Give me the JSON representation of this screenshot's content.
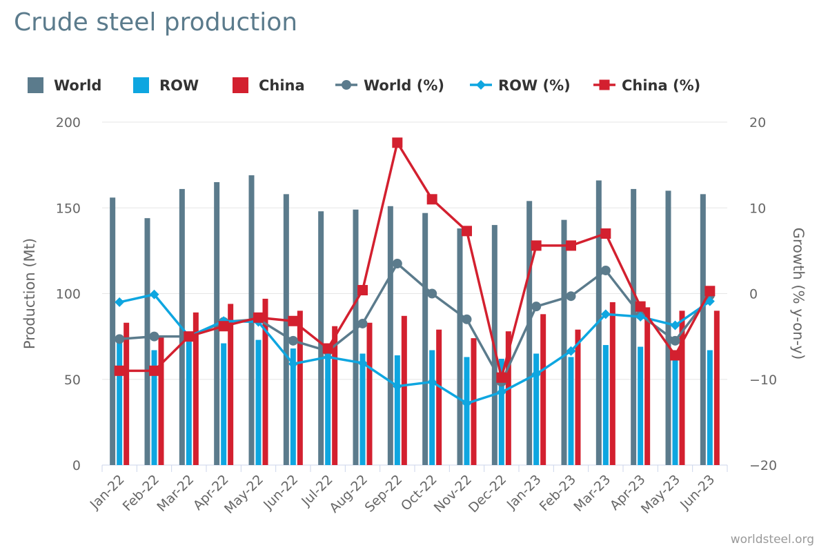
{
  "title": "Crude steel production",
  "credit": "worldsteel.org",
  "chart_data": {
    "type": "bar",
    "title": "Crude steel production",
    "categories": [
      "Jan-22",
      "Feb-22",
      "Mar-22",
      "Apr-22",
      "May-22",
      "Jun-22",
      "Jul-22",
      "Aug-22",
      "Sep-22",
      "Oct-22",
      "Nov-22",
      "Dec-22",
      "Jan-23",
      "Feb-23",
      "Mar-23",
      "Apr-23",
      "May-23",
      "Jun-23"
    ],
    "ylabel": "Production (Mt)",
    "ylabel_right": "Growth (% y-on-y)",
    "ylim": [
      0,
      200
    ],
    "ylim_right": [
      -20,
      20
    ],
    "yticks": [
      "0",
      "50",
      "100",
      "150",
      "200"
    ],
    "yticks_right": [
      "−20",
      "−10",
      "0",
      "10",
      "20"
    ],
    "legend_position": "top-left",
    "series": [
      {
        "name": "World",
        "type": "bar",
        "axis": "left",
        "color": "#5b7b8c",
        "values": [
          156,
          144,
          161,
          165,
          169,
          158,
          148,
          149,
          151,
          147,
          138,
          140,
          154,
          143,
          166,
          161,
          160,
          158
        ]
      },
      {
        "name": "ROW",
        "type": "bar",
        "axis": "left",
        "color": "#0ea6e0",
        "values": [
          72,
          67,
          72,
          71,
          73,
          68,
          68,
          65,
          64,
          67,
          63,
          62,
          65,
          63,
          70,
          69,
          67,
          67
        ]
      },
      {
        "name": "China",
        "type": "bar",
        "axis": "left",
        "color": "#d3202f",
        "values": [
          83,
          75,
          89,
          94,
          97,
          90,
          81,
          83,
          87,
          79,
          74,
          78,
          88,
          79,
          95,
          92,
          90,
          90
        ]
      },
      {
        "name": "World (%)",
        "type": "line",
        "axis": "right",
        "color": "#5b7b8c",
        "marker": "circle",
        "values": [
          -5.3,
          -5.0,
          -5.0,
          -3.3,
          -3.0,
          -5.5,
          -6.7,
          -3.5,
          3.5,
          0,
          -3.0,
          -10.3,
          -1.5,
          -0.3,
          2.7,
          -2.5,
          -5.5,
          -0.2
        ]
      },
      {
        "name": "ROW (%)",
        "type": "line",
        "axis": "right",
        "color": "#0ea6e0",
        "marker": "diamond",
        "values": [
          -1.0,
          -0.1,
          -5.0,
          -3.2,
          -3.3,
          -8.2,
          -7.4,
          -8.1,
          -10.8,
          -10.3,
          -12.8,
          -11.5,
          -9.4,
          -6.7,
          -2.4,
          -2.7,
          -3.7,
          -0.9
        ]
      },
      {
        "name": "China (%)",
        "type": "line",
        "axis": "right",
        "color": "#d3202f",
        "marker": "square",
        "values": [
          -9.0,
          -9.0,
          -5.0,
          -3.8,
          -2.8,
          -3.2,
          -6.4,
          0.4,
          17.6,
          11.0,
          7.3,
          -9.8,
          5.6,
          5.6,
          7.0,
          -1.5,
          -7.2,
          0.3
        ]
      }
    ]
  }
}
